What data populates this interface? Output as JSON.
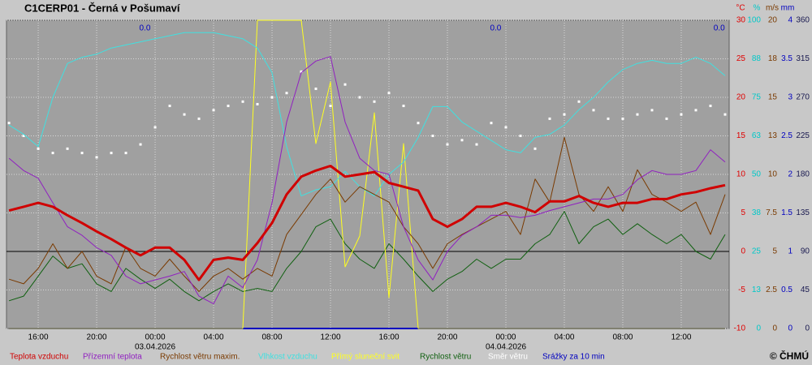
{
  "chart_data": {
    "type": "line",
    "title": "C1CERP01 - Černá v Pošumaví",
    "copyright": "© ČHMÚ",
    "grid": true,
    "zero_line": 0,
    "x": [
      -2,
      -1,
      0,
      1,
      2,
      3,
      4,
      5,
      6,
      7,
      8,
      9,
      10,
      11,
      12,
      13,
      14,
      15,
      16,
      17,
      18,
      19,
      20,
      21,
      22,
      23,
      24,
      25,
      26,
      27,
      28,
      29,
      30,
      31,
      32,
      33,
      34,
      35,
      36,
      37,
      38,
      39,
      40,
      41,
      42,
      43,
      44,
      45,
      46,
      47
    ],
    "xlim": [
      -2.17,
      47.28
    ],
    "xticks": [
      {
        "value": 0,
        "label": "16:00"
      },
      {
        "value": 4,
        "label": "20:00"
      },
      {
        "value": 8,
        "label": "00:00"
      },
      {
        "value": 12,
        "label": "04:00"
      },
      {
        "value": 16,
        "label": "08:00"
      },
      {
        "value": 20,
        "label": "12:00"
      },
      {
        "value": 24,
        "label": "16:00"
      },
      {
        "value": 28,
        "label": "20:00"
      },
      {
        "value": 32,
        "label": "00:00"
      },
      {
        "value": 36,
        "label": "04:00"
      },
      {
        "value": 40,
        "label": "08:00"
      },
      {
        "value": 44,
        "label": "12:00"
      }
    ],
    "x_date_labels": [
      {
        "value": 8,
        "label": "03.04.2026"
      },
      {
        "value": 32,
        "label": "04.04.2026"
      }
    ],
    "daily_precip": [
      {
        "x": 7.3,
        "value": 0,
        "label": "0.0"
      },
      {
        "x": 31.3,
        "value": 0,
        "label": "0.0"
      },
      {
        "x": 46.6,
        "value": 0,
        "label": "0.0"
      }
    ],
    "axes": {
      "temp": {
        "unit": "°C",
        "color": "#e00000",
        "lim": [
          -10,
          30
        ],
        "ticks": [
          -10,
          -5,
          0,
          5,
          10,
          15,
          20,
          25,
          30
        ]
      },
      "pct": {
        "unit": "%",
        "color": "#00c8c8",
        "lim": [
          0,
          100
        ],
        "ticks": [
          0,
          {
            "value": 12.5,
            "label": "13"
          },
          25,
          {
            "value": 37.5,
            "label": "38"
          },
          50,
          {
            "value": 62.5,
            "label": "63"
          },
          75,
          {
            "value": 87.5,
            "label": "88"
          },
          100
        ]
      },
      "wind": {
        "unit": "m/s",
        "color": "#7a3a00",
        "lim": [
          0,
          20
        ],
        "ticks": [
          0,
          2.5,
          5,
          7.5,
          10,
          {
            "value": 12.5,
            "label": "13"
          },
          15,
          {
            "value": 17.5,
            "label": "18"
          },
          20
        ]
      },
      "mm": {
        "unit": "mm",
        "color": "#0000c0",
        "lim": [
          0,
          4
        ],
        "ticks": [
          0,
          0.5,
          1,
          1.5,
          2,
          2.5,
          3,
          3.5,
          4
        ]
      },
      "dir": {
        "color": "#1a1a50",
        "lim": [
          0,
          360
        ],
        "ticks": [
          0,
          45,
          90,
          135,
          180,
          225,
          270,
          315,
          360
        ]
      }
    },
    "series": [
      {
        "name": "Teplota vzduchu",
        "color": "#d00000",
        "axis": "temp",
        "width": 3,
        "values": [
          5.3,
          5.8,
          6.3,
          5.8,
          4.7,
          3.7,
          2.6,
          1.6,
          0.5,
          -0.5,
          0.5,
          0.5,
          -1.1,
          -3.7,
          -1.1,
          -0.8,
          -1.1,
          1.1,
          3.7,
          7.4,
          9.7,
          10.5,
          11.1,
          9.7,
          10,
          10.3,
          8.9,
          8.4,
          7.9,
          4.2,
          3.2,
          4.2,
          5.8,
          5.8,
          6.3,
          5.8,
          5.1,
          6.5,
          6.5,
          7.2,
          6.3,
          5.8,
          6.3,
          6.3,
          6.8,
          6.8,
          7.4,
          7.7,
          8.2,
          8.6
        ]
      },
      {
        "name": "Přízemní teplota",
        "color": "#9020c0",
        "axis": "temp",
        "width": 1,
        "values": [
          12.1,
          10.5,
          9.5,
          6.3,
          3.2,
          2.1,
          0.5,
          -0.5,
          -3.2,
          -4.2,
          -3.7,
          -3.2,
          -2.6,
          -5.8,
          -6.8,
          -3.2,
          -4.7,
          -1.1,
          6.3,
          16.8,
          23.2,
          24.7,
          25.3,
          16.8,
          12.1,
          10.5,
          10,
          3.2,
          -1.1,
          -3.7,
          0,
          2.1,
          3.2,
          4.7,
          4.7,
          4.4,
          4.7,
          5.3,
          5.8,
          6.3,
          6.8,
          6.8,
          7.4,
          9.3,
          10.5,
          10,
          10,
          10.5,
          13.2,
          11.6
        ]
      },
      {
        "name": "Rychlost větru maxim.",
        "color": "#7a3a00",
        "axis": "wind",
        "width": 1,
        "values": [
          3.2,
          2.9,
          3.9,
          5.5,
          3.9,
          5,
          3.4,
          2.9,
          5.3,
          3.9,
          3.4,
          4.5,
          3.4,
          2.4,
          3.4,
          3.9,
          3.2,
          3.9,
          3.4,
          6.1,
          7.4,
          8.7,
          9.7,
          8.2,
          9.2,
          8.7,
          8.2,
          6.6,
          5.5,
          3.9,
          5.5,
          6.1,
          6.6,
          7.1,
          7.6,
          6.1,
          9.7,
          8.2,
          12.4,
          8.7,
          7.6,
          9.2,
          7.6,
          10.3,
          8.7,
          8.2,
          7.6,
          8.2,
          6.1,
          8.7
        ]
      },
      {
        "name": "Vlhkost vzduchu",
        "color": "#40e0e0",
        "axis": "pct",
        "width": 1,
        "values": [
          66,
          63,
          59,
          75,
          86,
          88,
          89,
          91,
          92,
          93,
          94,
          95,
          96,
          96,
          96,
          95,
          94,
          91,
          83,
          59,
          43,
          45,
          46,
          51,
          46,
          43,
          50,
          54,
          62,
          72,
          72,
          67,
          64,
          61,
          58,
          57,
          62,
          63,
          66,
          71,
          75,
          80,
          84,
          86,
          87,
          86,
          86,
          88,
          86,
          82
        ]
      },
      {
        "name": "Přímý sluneční svit",
        "color": "#ffff20",
        "axis": "pct",
        "width": 1,
        "values": [
          0,
          0,
          0,
          0,
          0,
          0,
          0,
          0,
          0,
          0,
          0,
          0,
          0,
          0,
          0,
          0,
          0,
          100,
          100,
          100,
          100,
          60,
          80,
          20,
          30,
          70,
          10,
          60,
          0,
          0,
          0,
          0,
          0,
          0,
          0,
          0,
          0,
          0,
          0,
          0,
          0,
          0,
          0,
          0,
          0,
          0,
          0,
          0,
          0,
          0
        ]
      },
      {
        "name": "Rychlost větru",
        "color": "#106010",
        "axis": "wind",
        "width": 1,
        "values": [
          1.8,
          2.1,
          3.4,
          4.7,
          3.9,
          4.2,
          2.9,
          2.4,
          3.9,
          3.2,
          2.6,
          3.2,
          2.4,
          1.8,
          2.4,
          2.9,
          2.4,
          2.6,
          2.4,
          3.9,
          5,
          6.6,
          7.1,
          5.5,
          4.5,
          3.9,
          5.5,
          4.5,
          3.4,
          2.4,
          3.2,
          3.7,
          4.5,
          3.9,
          4.5,
          4.5,
          5.5,
          6.1,
          7.6,
          5.5,
          6.6,
          7.1,
          6.1,
          6.8,
          6.1,
          5.5,
          6.1,
          5,
          4.5,
          6.1
        ]
      },
      {
        "name": "Směr větru",
        "color": "#ffffff",
        "axis": "dir",
        "kind": "points",
        "values": [
          240,
          225,
          210,
          205,
          210,
          205,
          200,
          205,
          205,
          215,
          235,
          260,
          250,
          245,
          255,
          260,
          265,
          262,
          270,
          275,
          300,
          280,
          260,
          285,
          270,
          265,
          275,
          260,
          240,
          225,
          215,
          220,
          215,
          240,
          235,
          225,
          210,
          245,
          250,
          265,
          255,
          245,
          245,
          250,
          255,
          245,
          250,
          255,
          260,
          250
        ]
      },
      {
        "name": "Srážky za 10 min",
        "color": "#0000c0",
        "axis": "mm",
        "width": 2,
        "values": [
          0,
          0,
          0,
          0,
          0,
          0,
          0,
          0,
          0,
          0,
          0,
          0,
          0,
          0,
          0,
          0,
          0,
          0,
          0,
          0,
          0,
          0,
          0,
          0,
          0,
          0,
          0,
          0,
          0,
          0,
          0,
          0,
          0,
          0,
          0,
          0,
          0,
          0,
          0,
          0,
          0,
          0,
          0,
          0,
          0,
          0,
          0,
          0,
          0,
          0
        ]
      }
    ]
  }
}
